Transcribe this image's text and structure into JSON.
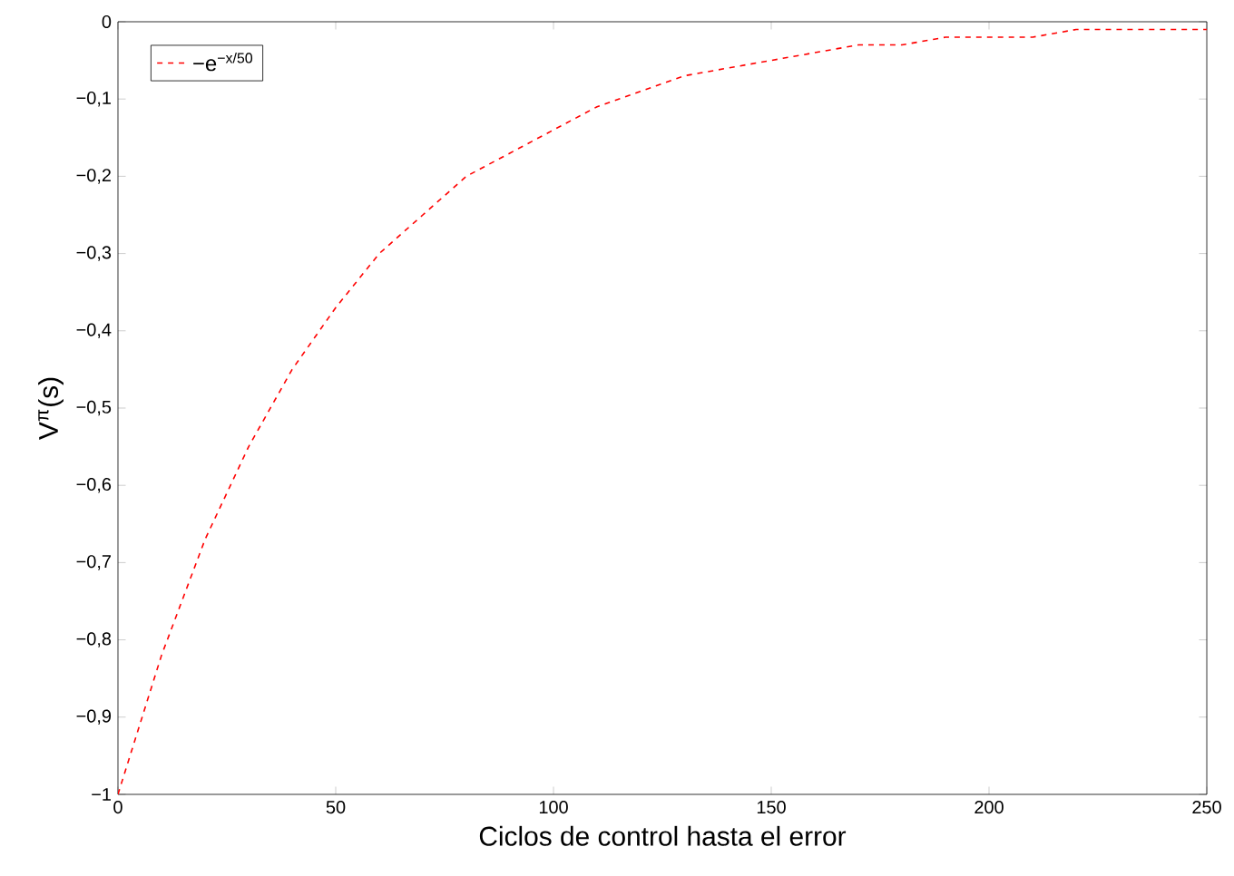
{
  "chart_data": {
    "type": "line",
    "xlabel": "Ciclos de control hasta el error",
    "ylabel": "V$^{π}$(s)",
    "x": [
      0,
      10,
      20,
      30,
      40,
      50,
      60,
      70,
      80,
      90,
      100,
      110,
      120,
      130,
      140,
      150,
      160,
      170,
      180,
      190,
      200,
      210,
      220,
      230,
      240,
      250
    ],
    "series": [
      {
        "name": "−e$^{−x/50}$",
        "color": "#ff0000",
        "values": [
          -1,
          -0.82,
          -0.67,
          -0.55,
          -0.45,
          -0.37,
          -0.3,
          -0.25,
          -0.2,
          -0.17,
          -0.14,
          -0.11,
          -0.09,
          -0.07,
          -0.06,
          -0.05,
          -0.04,
          -0.03,
          -0.03,
          -0.02,
          -0.02,
          -0.02,
          -0.01,
          -0.01,
          -0.01,
          -0.01
        ]
      }
    ],
    "xlim": [
      0,
      250
    ],
    "ylim": [
      -1,
      0
    ],
    "xticks": [
      0,
      50,
      100,
      150,
      200,
      250
    ],
    "yticks": [
      {
        "value": -1,
        "label": "−1"
      },
      {
        "value": -0.9,
        "label": "−0,9"
      },
      {
        "value": -0.8,
        "label": "−0,8"
      },
      {
        "value": -0.7,
        "label": "−0,7"
      },
      {
        "value": -0.6,
        "label": "−0,6"
      },
      {
        "value": -0.5,
        "label": "−0,5"
      },
      {
        "value": -0.4,
        "label": "−0,4"
      },
      {
        "value": -0.3,
        "label": "−0,3"
      },
      {
        "value": -0.2,
        "label": "−0,2"
      },
      {
        "value": -0.1,
        "label": "−0,1"
      },
      0
    ],
    "legend": "top left",
    "grid": false,
    "marker": "none",
    "line_style": "dashed"
  }
}
